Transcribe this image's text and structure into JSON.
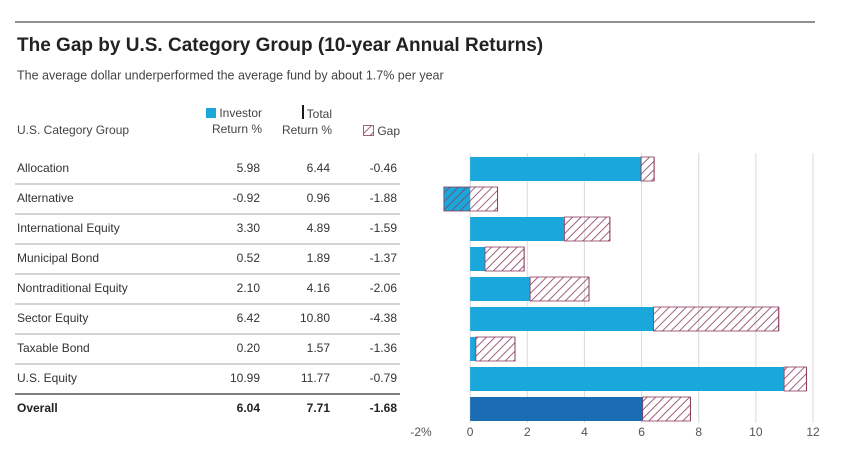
{
  "chart_data": {
    "type": "gap_bar",
    "title": "The Gap by U.S. Category Group (10-year Annual Returns)",
    "subtitle": "The average dollar underperformed the average fund by about 1.7% per year",
    "category_header": "U.S. Category Group",
    "categories": [
      "Allocation",
      "Alternative",
      "International Equity",
      "Municipal Bond",
      "Nontraditional Equity",
      "Sector Equity",
      "Taxable Bond",
      "U.S. Equity",
      "Overall"
    ],
    "series": [
      {
        "name": "Investor Return %",
        "color": "#1aa7dc",
        "colors": [
          "#1aa7dc",
          "#1aa7dc",
          "#1aa7dc",
          "#1aa7dc",
          "#1aa7dc",
          "#1aa7dc",
          "#1aa7dc",
          "#1aa7dc",
          "#1b6db3"
        ],
        "values": [
          5.98,
          -0.92,
          3.3,
          0.52,
          2.1,
          6.42,
          0.2,
          10.99,
          6.04
        ],
        "value_labels": [
          "5.98",
          "-0.92",
          "3.30",
          "0.52",
          "2.10",
          "6.42",
          "0.20",
          "10.99",
          "6.04"
        ]
      },
      {
        "name": "Total Return %",
        "color": "#1a1a1a",
        "values": [
          6.44,
          0.96,
          4.89,
          1.89,
          4.16,
          10.8,
          1.57,
          11.77,
          7.71
        ],
        "value_labels": [
          "6.44",
          "0.96",
          "4.89",
          "1.89",
          "4.16",
          "10.80",
          "1.57",
          "11.77",
          "7.71"
        ]
      },
      {
        "name": "Gap",
        "color": "#8c3b5e",
        "values": [
          -0.46,
          -1.88,
          -1.59,
          -1.37,
          -2.06,
          -4.38,
          -1.36,
          -0.79,
          -1.68
        ],
        "value_labels": [
          "-0.46",
          "-1.88",
          "-1.59",
          "-1.37",
          "-2.06",
          "-4.38",
          "-1.36",
          "-0.79",
          "-1.68"
        ]
      }
    ],
    "xlim": [
      -2,
      12
    ],
    "xticks": [
      {
        "value": -2,
        "label": "-2%"
      },
      0,
      2,
      4,
      6,
      8,
      10,
      12
    ],
    "grid": true
  }
}
